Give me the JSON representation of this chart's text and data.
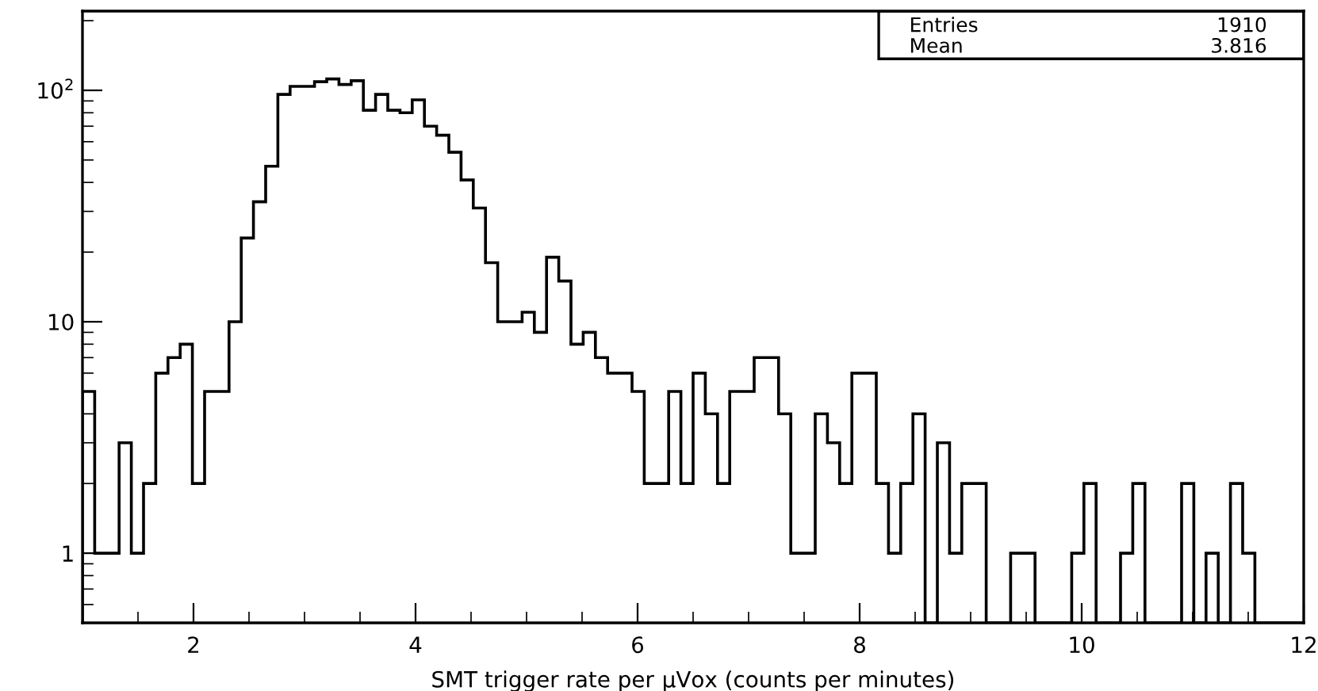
{
  "chart_data": {
    "type": "histogram",
    "xlabel": "SMT trigger rate per $_{}$μVox (counts per minutes)",
    "annotations": [
      "Entries",
      "1910",
      "Mean",
      "3.816"
    ],
    "bins": [
      1,
      1.11,
      1.22,
      1.33,
      1.44,
      1.55,
      1.66,
      1.77,
      1.88,
      1.99,
      2.1,
      2.21,
      2.32,
      2.43,
      2.54,
      2.65,
      2.76,
      2.87,
      2.98,
      3.09,
      3.2,
      3.31,
      3.42,
      3.53,
      3.64,
      3.75,
      3.86,
      3.97,
      4.08,
      4.19,
      4.3,
      4.41,
      4.52,
      4.63,
      4.74,
      4.85,
      4.96,
      5.07,
      5.18,
      5.29,
      5.4,
      5.51,
      5.62,
      5.73,
      5.84,
      5.95,
      6.06,
      6.17,
      6.28,
      6.39,
      6.5,
      6.61,
      6.72,
      6.83,
      6.94,
      7.05,
      7.16,
      7.27,
      7.38,
      7.49,
      7.6,
      7.71,
      7.82,
      7.93,
      8.04,
      8.15,
      8.26,
      8.37,
      8.48,
      8.59,
      8.7,
      8.81,
      8.92,
      9.03,
      9.14,
      9.25,
      9.36,
      9.47,
      9.58,
      9.69,
      9.8,
      9.91,
      10.02,
      10.13,
      10.24,
      10.35,
      10.46,
      10.57,
      10.68,
      10.79,
      10.9,
      11.01,
      11.12,
      11.23,
      11.34,
      11.45,
      11.56,
      11.67,
      11.78,
      11.89,
      12
    ],
    "values": [
      5,
      1,
      1,
      3,
      1,
      2,
      6,
      7,
      8,
      2,
      5,
      5,
      10,
      23,
      33,
      47,
      96,
      104,
      104,
      109,
      112,
      106,
      110,
      82,
      96,
      82,
      80,
      91,
      70,
      64,
      54,
      41,
      31,
      18,
      10,
      10,
      11,
      9,
      19,
      15,
      8,
      9,
      7,
      6,
      6,
      5,
      2,
      2,
      5,
      2,
      6,
      4,
      2,
      5,
      5,
      7,
      7,
      4,
      1,
      1,
      4,
      3,
      2,
      6,
      6,
      2,
      1,
      2,
      4,
      null,
      3,
      1,
      2,
      2,
      null,
      null,
      1,
      1,
      null,
      null,
      null,
      1,
      2,
      null,
      null,
      1,
      2,
      null,
      null,
      null,
      2,
      null,
      1,
      null,
      2,
      1,
      null,
      null,
      null,
      null
    ],
    "color": "#000000",
    "log": "y",
    "grid": false,
    "xlim": [
      1,
      12
    ],
    "ylim": [
      0.5,
      220
    ],
    "xticks": [
      {
        "value": 1.5,
        "label": null
      },
      2,
      {
        "value": 2.5,
        "label": null
      },
      {
        "value": 3,
        "label": null
      },
      {
        "value": 3.5,
        "label": null
      },
      4,
      {
        "value": 4.5,
        "label": null
      },
      {
        "value": 5,
        "label": null
      },
      {
        "value": 5.5,
        "label": null
      },
      6,
      {
        "value": 6.5,
        "label": null
      },
      {
        "value": 7,
        "label": null
      },
      {
        "value": 7.5,
        "label": null
      },
      8,
      {
        "value": 8.5,
        "label": null
      },
      {
        "value": 9,
        "label": null
      },
      {
        "value": 9.5,
        "label": null
      },
      10,
      {
        "value": 10.5,
        "label": null
      },
      {
        "value": 11,
        "label": null
      },
      {
        "value": 11.5,
        "label": null
      },
      12
    ],
    "yticks": [
      {
        "value": 0.6,
        "label": null
      },
      {
        "value": 0.7,
        "label": null
      },
      {
        "value": 0.8,
        "label": null
      },
      {
        "value": 0.9,
        "label": null
      },
      1,
      {
        "value": 2,
        "label": null
      },
      {
        "value": 3,
        "label": null
      },
      {
        "value": 4,
        "label": null
      },
      {
        "value": 5,
        "label": null
      },
      {
        "value": 6,
        "label": null
      },
      {
        "value": 7,
        "label": null
      },
      {
        "value": 8,
        "label": null
      },
      {
        "value": 9,
        "label": null
      },
      10,
      {
        "value": 20,
        "label": null
      },
      {
        "value": 30,
        "label": null
      },
      {
        "value": 40,
        "label": null
      },
      {
        "value": 50,
        "label": null
      },
      {
        "value": 60,
        "label": null
      },
      {
        "value": 70,
        "label": null
      },
      {
        "value": 80,
        "label": null
      },
      {
        "value": 90,
        "label": null
      },
      {
        "value": 100,
        "label": "10$^{2}$"
      },
      {
        "value": 200,
        "label": null
      }
    ]
  }
}
